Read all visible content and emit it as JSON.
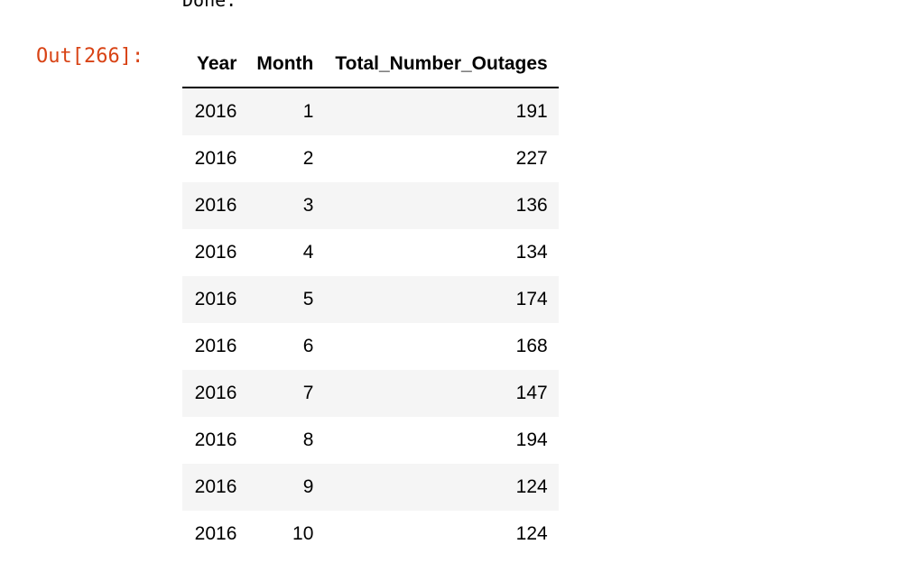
{
  "cell": {
    "stdout_text": "Done.",
    "out_prompt": "Out[266]:"
  },
  "table": {
    "columns": [
      "Year",
      "Month",
      "Total_Number_Outages"
    ],
    "rows": [
      [
        "2016",
        "1",
        "191"
      ],
      [
        "2016",
        "2",
        "227"
      ],
      [
        "2016",
        "3",
        "136"
      ],
      [
        "2016",
        "4",
        "134"
      ],
      [
        "2016",
        "5",
        "174"
      ],
      [
        "2016",
        "6",
        "168"
      ],
      [
        "2016",
        "7",
        "147"
      ],
      [
        "2016",
        "8",
        "194"
      ],
      [
        "2016",
        "9",
        "124"
      ],
      [
        "2016",
        "10",
        "124"
      ]
    ]
  },
  "colors": {
    "prompt": "#d84315",
    "stripe": "#f5f5f5",
    "text": "#000000"
  }
}
